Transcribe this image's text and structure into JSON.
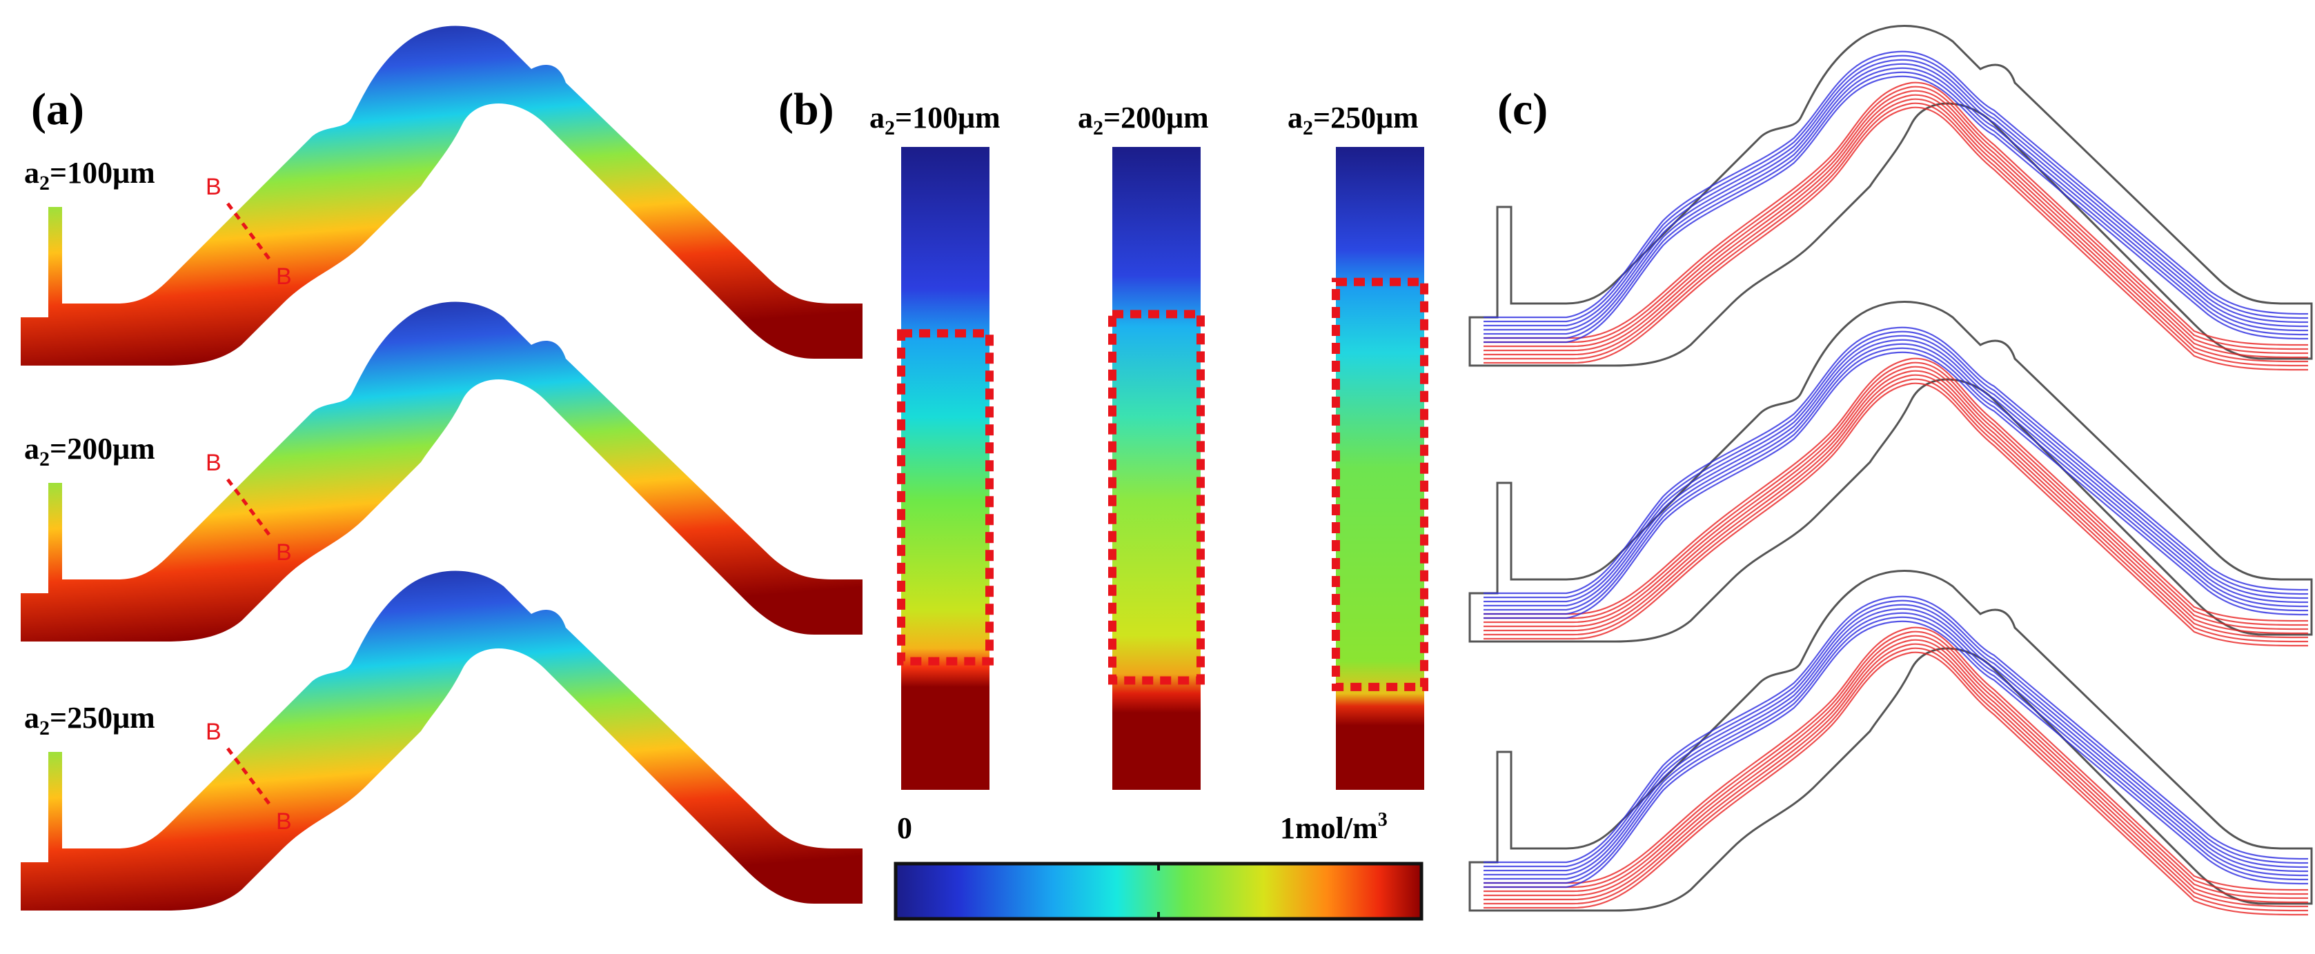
{
  "panels": {
    "a": {
      "label": "(a)",
      "rows": [
        {
          "prefix": "a",
          "subscript": "2",
          "suffix": "=100μm",
          "section": "B"
        },
        {
          "prefix": "a",
          "subscript": "2",
          "suffix": "=200μm",
          "section": "B"
        },
        {
          "prefix": "a",
          "subscript": "2",
          "suffix": "=250μm",
          "section": "B"
        }
      ]
    },
    "b": {
      "label": "(b)",
      "columns": [
        {
          "prefix": "a",
          "subscript": "2",
          "suffix": "=100μm",
          "band_start": 0.29,
          "band_end": 0.8
        },
        {
          "prefix": "a",
          "subscript": "2",
          "suffix": "=200μm",
          "band_start": 0.26,
          "band_end": 0.83
        },
        {
          "prefix": "a",
          "subscript": "2",
          "suffix": "=250μm",
          "band_start": 0.21,
          "band_end": 0.84
        }
      ],
      "colorbar": {
        "min_label": "0",
        "max_label": "1mol/m",
        "max_label_sup": "3"
      }
    },
    "c": {
      "label": "(c)"
    }
  },
  "colors": {
    "jet_low": "#1a1a9e",
    "jet_high": "#8b0000",
    "section_line": "#e8141b",
    "stream_blue": "#2a2ae0",
    "stream_red": "#e82020"
  }
}
